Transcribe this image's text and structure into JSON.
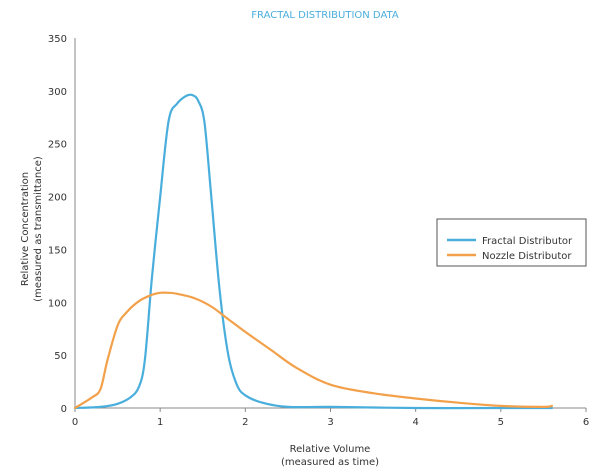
{
  "chart_data": {
    "type": "line",
    "title": "FRACTAL DISTRIBUTION DATA",
    "xlabel": [
      "Relative Volume",
      "(measured as time)"
    ],
    "ylabel": [
      "Relative Concentration",
      "(measured as transmittance)"
    ],
    "xlim": [
      0,
      6
    ],
    "ylim": [
      0,
      350
    ],
    "xticks": [
      "0",
      "1",
      "2",
      "3",
      "4",
      "5",
      "6"
    ],
    "yticks": [
      "0",
      "50",
      "100",
      "150",
      "200",
      "250",
      "300",
      "350"
    ],
    "grid": false,
    "legend_position": "right",
    "series": [
      {
        "name": "Fractal Distributor",
        "color": "#4aaedc",
        "x": [
          0,
          0.3,
          0.5,
          0.65,
          0.75,
          0.82,
          0.9,
          1.0,
          1.1,
          1.2,
          1.3,
          1.38,
          1.45,
          1.52,
          1.6,
          1.7,
          1.8,
          1.9,
          2.0,
          2.2,
          2.5,
          3.0,
          4.0,
          5.0,
          5.6
        ],
        "y": [
          0,
          1,
          4,
          10,
          20,
          45,
          120,
          200,
          272,
          288,
          295,
          296,
          290,
          270,
          200,
          110,
          50,
          22,
          12,
          5,
          1,
          1,
          0,
          0,
          0
        ]
      },
      {
        "name": "Nozzle Distributor",
        "color": "#f2a04a",
        "x": [
          0,
          0.2,
          0.3,
          0.38,
          0.5,
          0.6,
          0.75,
          0.9,
          1.0,
          1.1,
          1.2,
          1.4,
          1.6,
          1.8,
          2.0,
          2.3,
          2.6,
          3.0,
          3.5,
          4.0,
          4.5,
          5.0,
          5.5,
          5.6
        ],
        "y": [
          0,
          10,
          18,
          45,
          78,
          90,
          101,
          107,
          109,
          109,
          108,
          104,
          96,
          84,
          72,
          55,
          38,
          22,
          14,
          9,
          5,
          2,
          1,
          2
        ]
      }
    ]
  }
}
